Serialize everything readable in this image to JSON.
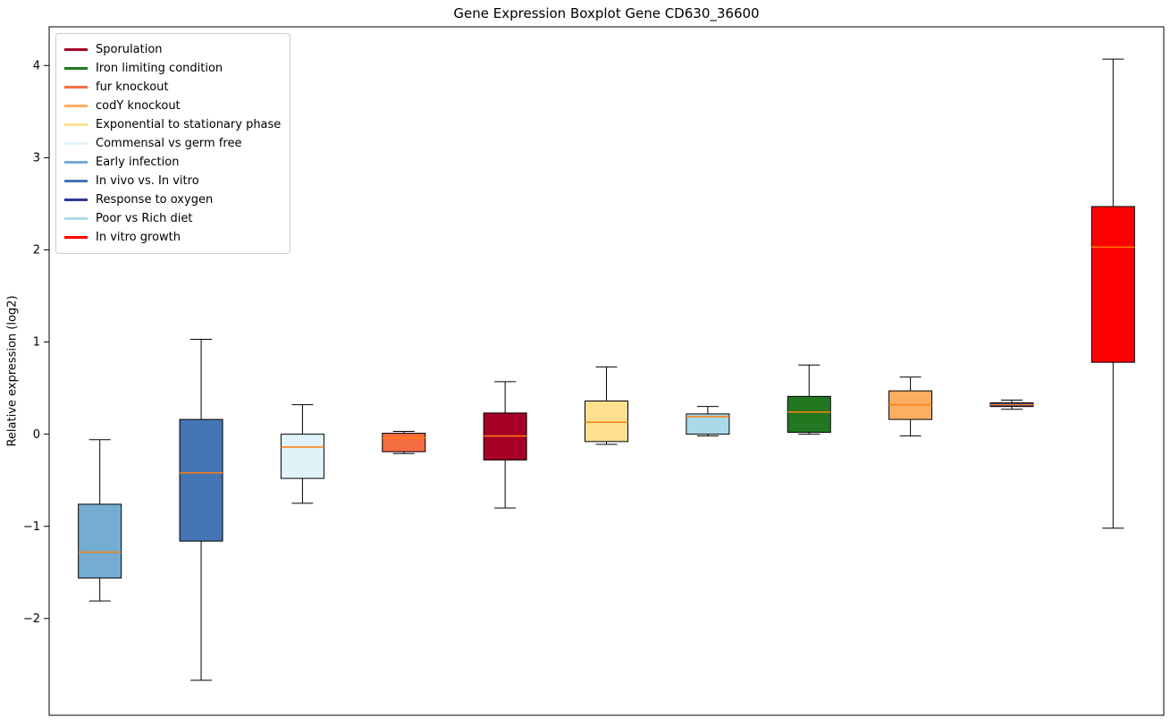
{
  "chart_data": {
    "type": "boxplot",
    "title": "Gene Expression Boxplot Gene CD630_36600",
    "xlabel": "",
    "ylabel": "Relative expression (log2)",
    "ylim": [
      -3.05,
      4.42
    ],
    "yticks": [
      -2,
      -1,
      0,
      1,
      2,
      3,
      4
    ],
    "grid": false,
    "legend_position": "upper left",
    "median_color": "#ff7f0e",
    "box_edge_color": "#000000",
    "whisker_color": "#000000",
    "legend": [
      {
        "label": "Sporulation",
        "color": "#a50026"
      },
      {
        "label": "Iron limiting condition",
        "color": "#217821"
      },
      {
        "label": "fur knockout",
        "color": "#f46d43"
      },
      {
        "label": "codY knockout",
        "color": "#fdae61"
      },
      {
        "label": "Exponential to stationary phase",
        "color": "#fee090"
      },
      {
        "label": "Commensal vs germ free",
        "color": "#e0f3f8"
      },
      {
        "label": "Early infection",
        "color": "#74add1"
      },
      {
        "label": "In vivo vs. In vitro",
        "color": "#4575b4"
      },
      {
        "label": "Response to oxygen",
        "color": "#313695"
      },
      {
        "label": "Poor vs Rich diet",
        "color": "#abd9e9"
      },
      {
        "label": "In vitro growth",
        "color": "#ff0000"
      }
    ],
    "boxes": [
      {
        "label": "Early infection",
        "color": "#74add1",
        "whislo": -1.81,
        "q1": -1.56,
        "med": -1.28,
        "q3": -0.76,
        "whishi": -0.06
      },
      {
        "label": "In vivo vs. In vitro",
        "color": "#4575b4",
        "whislo": -2.67,
        "q1": -1.16,
        "med": -0.42,
        "q3": 0.16,
        "whishi": 1.03
      },
      {
        "label": "Commensal vs germ free",
        "color": "#e0f3f8",
        "whislo": -0.75,
        "q1": -0.48,
        "med": -0.14,
        "q3": 0.0,
        "whishi": 0.32
      },
      {
        "label": "fur knockout",
        "color": "#f46d43",
        "whislo": -0.21,
        "q1": -0.19,
        "med": -0.04,
        "q3": 0.01,
        "whishi": 0.03
      },
      {
        "label": "Sporulation",
        "color": "#a50026",
        "whislo": -0.8,
        "q1": -0.28,
        "med": -0.02,
        "q3": 0.23,
        "whishi": 0.57
      },
      {
        "label": "Exponential to stationary phase",
        "color": "#fee090",
        "whislo": -0.11,
        "q1": -0.08,
        "med": 0.13,
        "q3": 0.36,
        "whishi": 0.73
      },
      {
        "label": "Poor vs Rich diet",
        "color": "#abd9e9",
        "whislo": -0.02,
        "q1": 0.0,
        "med": 0.19,
        "q3": 0.22,
        "whishi": 0.3
      },
      {
        "label": "Iron limiting condition",
        "color": "#217821",
        "whislo": 0.0,
        "q1": 0.02,
        "med": 0.24,
        "q3": 0.41,
        "whishi": 0.75
      },
      {
        "label": "codY knockout",
        "color": "#fdae61",
        "whislo": -0.02,
        "q1": 0.16,
        "med": 0.32,
        "q3": 0.47,
        "whishi": 0.62
      },
      {
        "label": "Response to oxygen",
        "color": "#313695",
        "whislo": 0.27,
        "q1": 0.3,
        "med": 0.32,
        "q3": 0.34,
        "whishi": 0.37
      },
      {
        "label": "In vitro growth",
        "color": "#ff0000",
        "whislo": -1.02,
        "q1": 0.78,
        "med": 2.03,
        "q3": 2.47,
        "whishi": 4.07
      }
    ]
  }
}
